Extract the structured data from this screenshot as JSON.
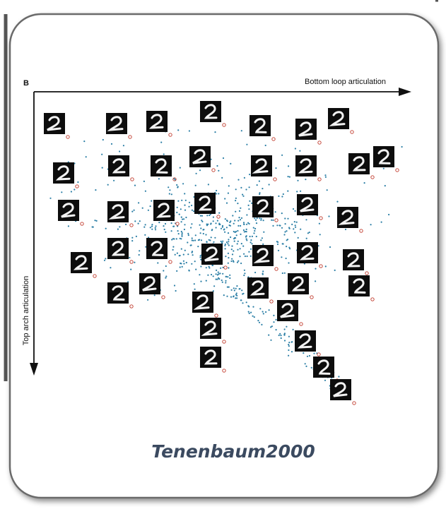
{
  "figure": {
    "panel_label": "B",
    "x_axis_label": "Bottom loop articulation",
    "y_axis_label": "Top arch articulation"
  },
  "caption": "Tenenbaum2000"
}
